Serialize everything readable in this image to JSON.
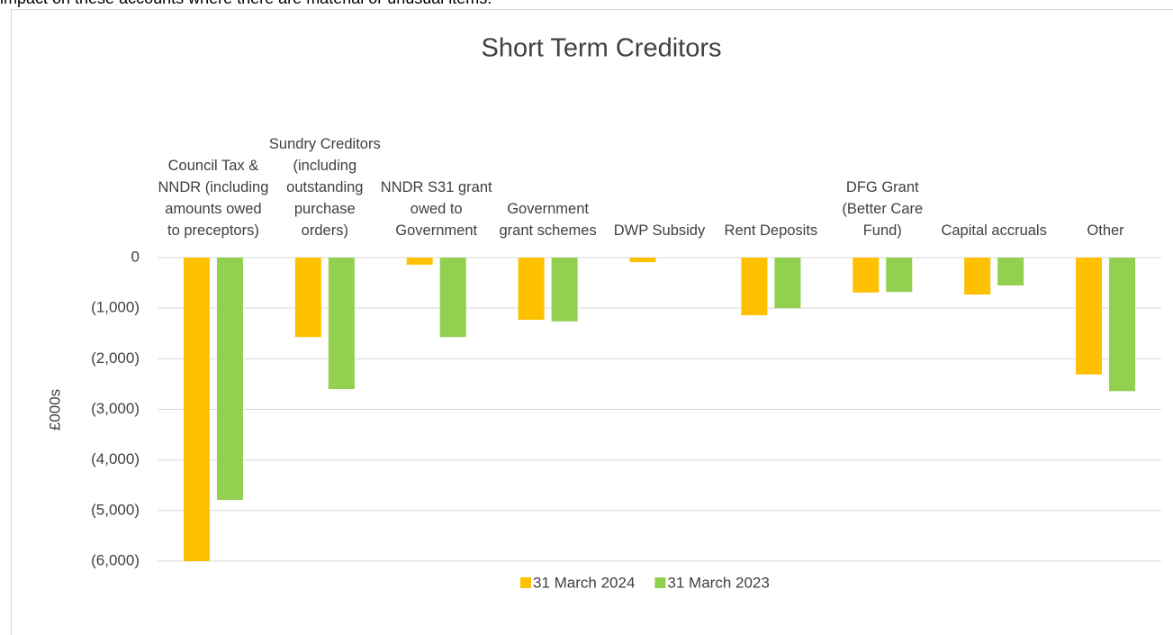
{
  "page_text": "impact on these accounts where there are material or unusual items.",
  "chart_data": {
    "type": "bar",
    "title": "Short Term Creditors",
    "y_label": "£000s",
    "categories": [
      "Council Tax & NNDR (including amounts owed to preceptors)",
      "Sundry Creditors (including outstanding purchase orders)",
      "NNDR S31 grant owed to Government",
      "Government grant schemes",
      "DWP Subsidy",
      "Rent Deposits",
      "DFG Grant (Better Care Fund)",
      "Capital accruals",
      "Other"
    ],
    "series": [
      {
        "name": "31 March 2024",
        "color": "#ffc000",
        "values": [
          -6000,
          -1570,
          -140,
          -1230,
          -90,
          -1140,
          -690,
          -730,
          -2310
        ]
      },
      {
        "name": "31 March 2023",
        "color": "#92d050",
        "values": [
          -4790,
          -2600,
          -1570,
          -1260,
          0,
          -1000,
          -680,
          -550,
          -2640
        ]
      }
    ],
    "ylim": [
      -6000,
      0
    ],
    "yticks": [
      {
        "value": -6000,
        "label": "(6,000)"
      },
      {
        "value": -5000,
        "label": "(5,000)"
      },
      {
        "value": -4000,
        "label": "(4,000)"
      },
      {
        "value": -3000,
        "label": "(3,000)"
      },
      {
        "value": -2000,
        "label": "(2,000)"
      },
      {
        "value": -1000,
        "label": "(1,000)"
      },
      0
    ],
    "grid": true,
    "legend": "bottom"
  }
}
